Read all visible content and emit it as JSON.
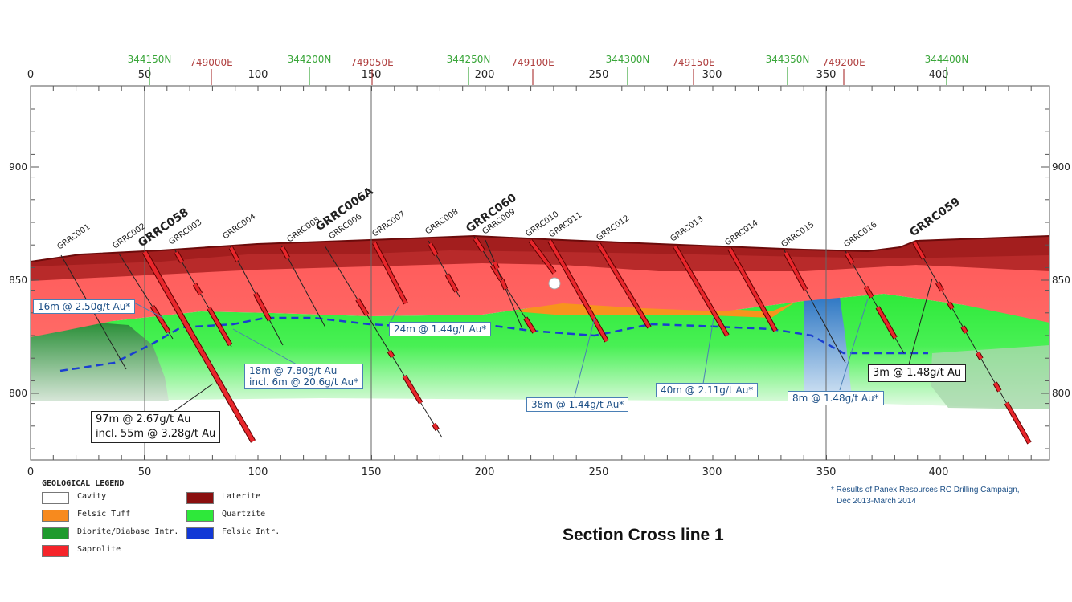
{
  "caption": "Section Cross line 1",
  "axis": {
    "x_ticks": [
      "0",
      "50",
      "100",
      "150",
      "200",
      "250",
      "300",
      "350",
      "400"
    ],
    "y_ticks": [
      "900",
      "850",
      "800"
    ],
    "northings": [
      "344150N",
      "344200N",
      "344250N",
      "344300N",
      "344350N",
      "344400N"
    ],
    "eastings": [
      "749000E",
      "749050E",
      "749100E",
      "749150E",
      "749200E"
    ]
  },
  "holes": [
    {
      "name": "GRRC001",
      "major": false
    },
    {
      "name": "GRRC002",
      "major": false
    },
    {
      "name": "GRRC058",
      "major": true
    },
    {
      "name": "GRRC003",
      "major": false
    },
    {
      "name": "GRRC004",
      "major": false
    },
    {
      "name": "GRRC005",
      "major": false
    },
    {
      "name": "GRRC006A",
      "major": true
    },
    {
      "name": "GRRC006",
      "major": false
    },
    {
      "name": "GRRC007",
      "major": false
    },
    {
      "name": "GRRC008",
      "major": false
    },
    {
      "name": "GRRC060",
      "major": true
    },
    {
      "name": "GRRC009",
      "major": false
    },
    {
      "name": "GRRC010",
      "major": false
    },
    {
      "name": "GRRC011",
      "major": false
    },
    {
      "name": "GRRC012",
      "major": false
    },
    {
      "name": "GRRC013",
      "major": false
    },
    {
      "name": "GRRC014",
      "major": false
    },
    {
      "name": "GRRC015",
      "major": false
    },
    {
      "name": "GRRC016",
      "major": false
    },
    {
      "name": "GRRC059",
      "major": true
    }
  ],
  "intercepts": {
    "a1": "16m @ 2.50g/t Au*",
    "a2_1": "18m @ 7.80g/t Au",
    "a2_2": "incl. 6m @ 20.6g/t Au*",
    "a3": "24m @ 1.44g/t Au*",
    "a4_1": "97m @ 2.67g/t Au",
    "a4_2": "incl. 55m @ 3.28g/t Au",
    "a5": "38m @ 1.44g/t Au*",
    "a6": "40m @ 2.11g/t Au*",
    "a7": "8m @ 1.48g/t Au*",
    "a8": "3m @ 1.48g/t Au"
  },
  "legend": {
    "title": "GEOLOGICAL LEGEND",
    "items": [
      {
        "label": "Cavity",
        "color": "#ffffff"
      },
      {
        "label": "Felsic Tuff",
        "color": "#f78a1e"
      },
      {
        "label": "Diorite/Diabase Intr.",
        "color": "#1f9a2e"
      },
      {
        "label": "Saprolite",
        "color": "#f5242a"
      },
      {
        "label": "Laterite",
        "color": "#8a0f0f"
      },
      {
        "label": "Quartzite",
        "color": "#2ee83a"
      },
      {
        "label": "Felsic Intr.",
        "color": "#1238d6"
      }
    ]
  },
  "footnote": {
    "line1": "* Results of Panex Resources RC Drilling Campaign,",
    "line2": "Dec 2013-March 2014"
  }
}
